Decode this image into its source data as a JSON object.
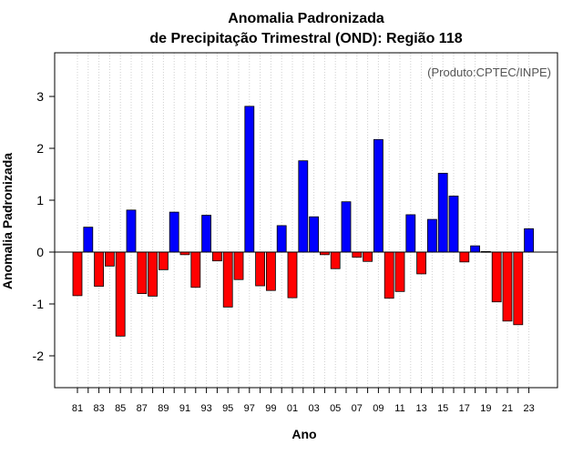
{
  "chart_data": {
    "type": "bar",
    "title_line1": "Anomalia Padronizada",
    "title_line2": "de Precipitação Trimestral (OND): Região 118",
    "xlabel": "Ano",
    "ylabel": "Anomalia Padronizada",
    "credit": "(Produto:CPTEC/INPE)",
    "ylim": [
      -2.6,
      3.85
    ],
    "yticks": [
      -2,
      -1,
      0,
      1,
      2,
      3
    ],
    "ytick_labels": [
      "-2",
      "-1",
      "0",
      "1",
      "2",
      "3"
    ],
    "xtick_labels": [
      "81",
      "83",
      "85",
      "87",
      "89",
      "91",
      "93",
      "95",
      "97",
      "99",
      "01",
      "03",
      "05",
      "07",
      "09",
      "11",
      "13",
      "15",
      "17",
      "19",
      "21",
      "23"
    ],
    "years": [
      1981,
      1982,
      1983,
      1984,
      1985,
      1986,
      1987,
      1988,
      1989,
      1990,
      1991,
      1992,
      1993,
      1994,
      1995,
      1996,
      1997,
      1998,
      1999,
      2000,
      2001,
      2002,
      2003,
      2004,
      2005,
      2006,
      2007,
      2008,
      2009,
      2010,
      2011,
      2012,
      2013,
      2014,
      2015,
      2016,
      2017,
      2018,
      2019,
      2020,
      2021,
      2022,
      2023
    ],
    "values": [
      -0.84,
      0.48,
      -0.66,
      -0.27,
      -1.62,
      0.81,
      -0.8,
      -0.85,
      -0.34,
      0.77,
      -0.05,
      -0.68,
      0.71,
      -0.17,
      -1.06,
      -0.53,
      2.81,
      -0.65,
      -0.74,
      0.51,
      -0.88,
      1.76,
      0.68,
      -0.05,
      -0.32,
      0.97,
      -0.1,
      -0.18,
      2.17,
      -0.89,
      -0.76,
      0.72,
      -0.42,
      0.63,
      1.52,
      1.08,
      -0.19,
      0.12,
      0.01,
      -0.96,
      -1.33,
      -1.4,
      0.45
    ],
    "colors": {
      "positive": "#0000ff",
      "negative": "#ff0000",
      "grid": "#d0d0d0",
      "axis": "#000000"
    }
  }
}
